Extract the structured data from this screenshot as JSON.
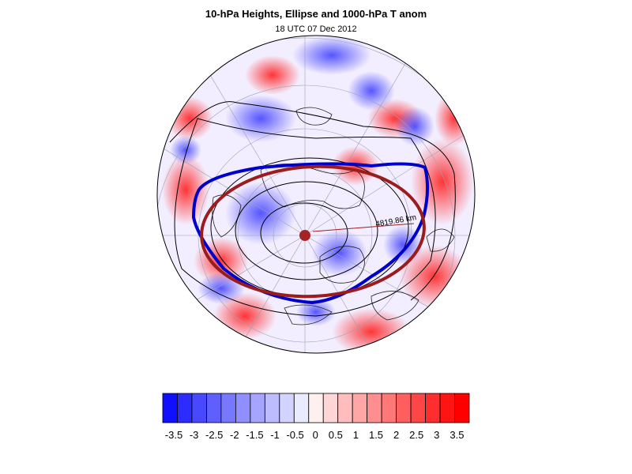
{
  "title": "10-hPa Heights, Ellipse and 1000-hPa T anom",
  "subtitle": "18 UTC 07 Dec 2012",
  "map": {
    "projection": "polar stereographic (north pole)",
    "contour_label": "4819.86 km",
    "ellipse_color": "#9b1c1c",
    "height_contour_color": "#0000cc",
    "center_marker_color": "#a52323"
  },
  "colorbar": {
    "labels": [
      "-3.5",
      "-3",
      "-2.5",
      "-2",
      "-1.5",
      "-1",
      "-0.5",
      "0",
      "0.5",
      "1",
      "1.5",
      "2",
      "2.5",
      "3",
      "3.5"
    ],
    "colors": [
      "#1010ff",
      "#2c2cff",
      "#4848ff",
      "#5f5fff",
      "#7878ff",
      "#8f8fff",
      "#a5a5ff",
      "#bcbcff",
      "#d3d3ff",
      "#ebebff",
      "#fff0f0",
      "#ffd6d6",
      "#ffbdbd",
      "#ffa6a6",
      "#ff8f8f",
      "#ff7878",
      "#ff5f5f",
      "#ff4646",
      "#ff2d2d",
      "#ff1414",
      "#ff0000"
    ]
  }
}
